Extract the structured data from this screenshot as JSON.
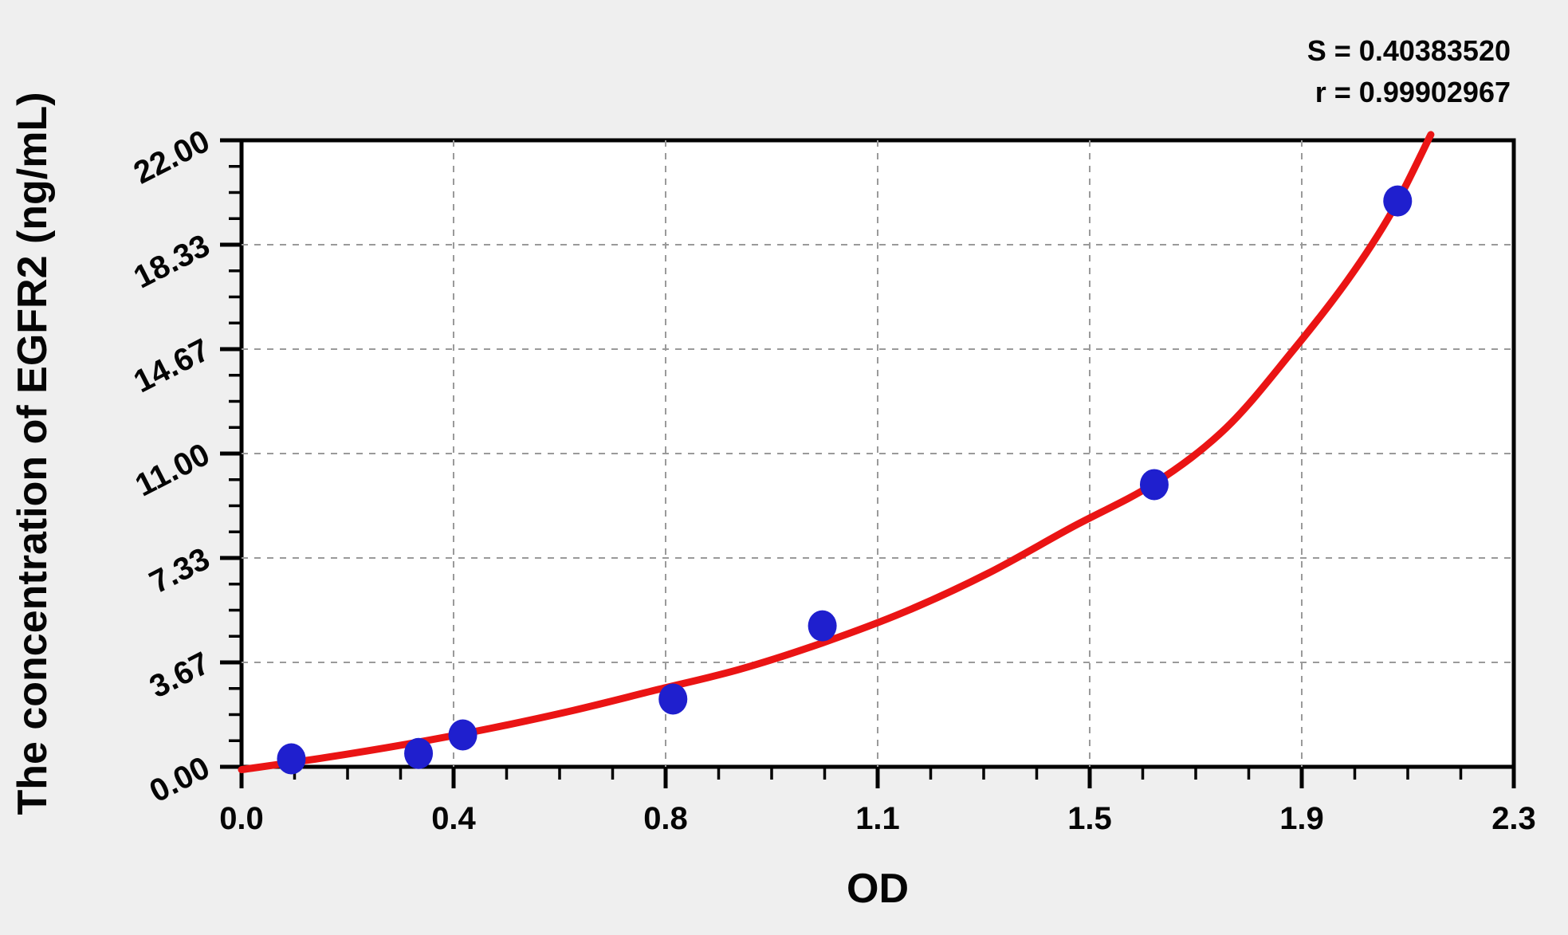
{
  "stats": {
    "s": "S = 0.40383520",
    "r": "r = 0.99902967"
  },
  "colors": {
    "background": "#efefef",
    "plot_background": "#ffffff",
    "axis": "#000000",
    "grid": "#9a9a9a",
    "curve": "#ea1414",
    "point": "#1f1fce"
  },
  "chart_data": {
    "type": "scatter",
    "title": "",
    "xlabel": "OD",
    "ylabel": "The concentration of EGFR2 (ng/mL)",
    "xlim": [
      0,
      2.3
    ],
    "ylim": [
      0,
      22
    ],
    "grid": "dashed gridlines at every major tick, plot framed on all four sides",
    "legend_position": "none",
    "x_ticks": {
      "labels": [
        "0.0",
        "0.4",
        "0.8",
        "1.1",
        "1.5",
        "1.9",
        "2.3"
      ],
      "values": [
        0,
        0.38333,
        0.76667,
        1.15,
        1.53333,
        1.91667,
        2.3
      ],
      "minor_per_interval": 3
    },
    "y_ticks": {
      "labels": [
        "0.00",
        "3.67",
        "7.33",
        "11.00",
        "14.67",
        "18.33",
        "22.00"
      ],
      "values": [
        0,
        3.6667,
        7.3333,
        11,
        14.6667,
        18.3333,
        22
      ],
      "minor_per_interval": 3
    },
    "series": [
      {
        "name": "standards",
        "style": "filled circle markers",
        "points": [
          {
            "od": 0.09,
            "conc": 0.28
          },
          {
            "od": 0.32,
            "conc": 0.47
          },
          {
            "od": 0.4,
            "conc": 1.12
          },
          {
            "od": 0.78,
            "conc": 2.38
          },
          {
            "od": 1.05,
            "conc": 4.95
          },
          {
            "od": 1.65,
            "conc": 9.91
          },
          {
            "od": 2.09,
            "conc": 19.87
          }
        ]
      },
      {
        "name": "fitted-curve",
        "style": "solid line",
        "samples": [
          [
            0.0,
            -0.1
          ],
          [
            0.15,
            0.32
          ],
          [
            0.3,
            0.8
          ],
          [
            0.45,
            1.35
          ],
          [
            0.6,
            1.98
          ],
          [
            0.75,
            2.7
          ],
          [
            0.9,
            3.42
          ],
          [
            1.05,
            4.35
          ],
          [
            1.2,
            5.45
          ],
          [
            1.35,
            6.8
          ],
          [
            1.5,
            8.4
          ],
          [
            1.65,
            9.95
          ],
          [
            1.78,
            11.9
          ],
          [
            1.9,
            14.6
          ],
          [
            2.0,
            17.1
          ],
          [
            2.08,
            19.5
          ],
          [
            2.15,
            22.2
          ]
        ]
      }
    ]
  }
}
